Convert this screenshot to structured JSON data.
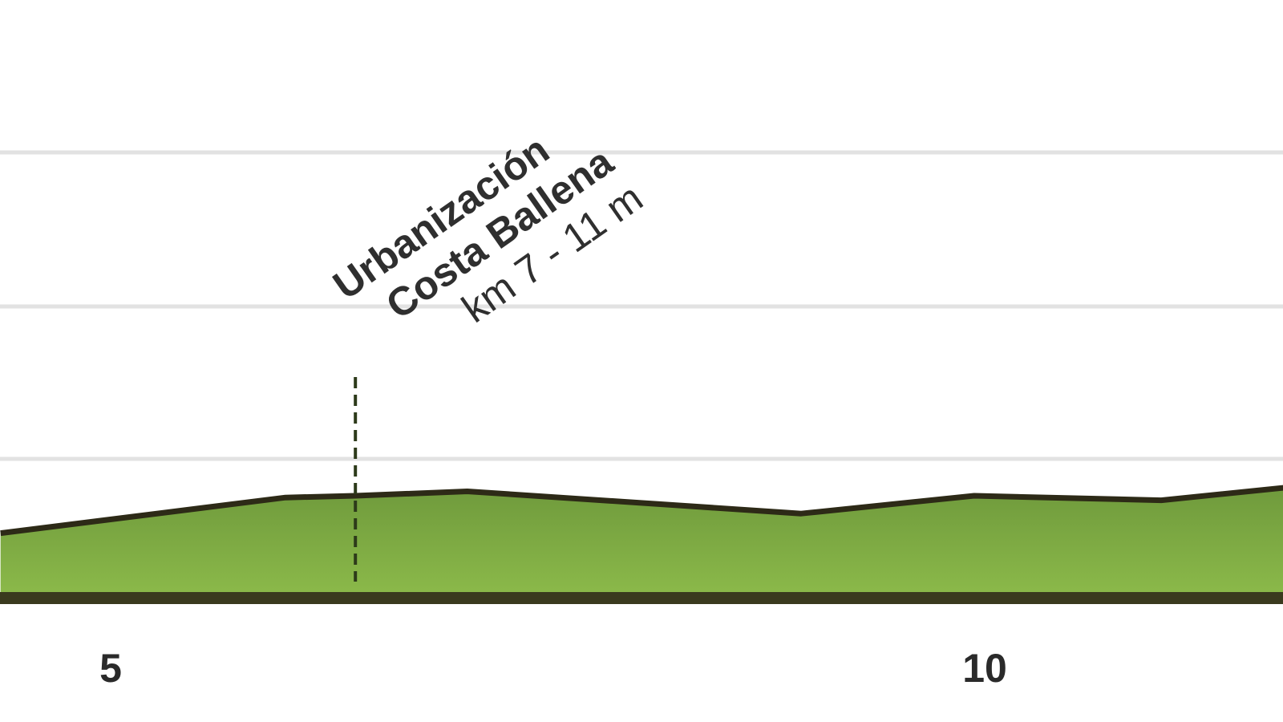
{
  "chart_data": {
    "type": "area",
    "title": "",
    "xlabel": "",
    "ylabel": "",
    "x_unit": "km",
    "y_unit": "m",
    "x": [
      4.37,
      6.0,
      6.4,
      7.04,
      8.95,
      9.94,
      11.01,
      11.71
    ],
    "y": [
      6.8,
      10.8,
      11.0,
      11.5,
      9.0,
      11.0,
      10.5,
      11.9
    ],
    "xlim": [
      4.37,
      11.71
    ],
    "ylim": [
      0,
      50
    ],
    "x_ticks": [
      {
        "value": 5,
        "label": "5"
      },
      {
        "value": 10,
        "label": "10"
      }
    ],
    "grid": true,
    "colors": {
      "fill_top": "#6f9a3c",
      "fill_bottom": "#8cba4a",
      "line": "#2d2a17",
      "base": "#3a3a1e",
      "grid": "#e2e2e2"
    },
    "annotations": [
      {
        "x": 6.4,
        "y": 11.0,
        "lines": [
          "Urbanización",
          "Costa Ballena",
          "km 7 - 11 m"
        ]
      }
    ]
  }
}
